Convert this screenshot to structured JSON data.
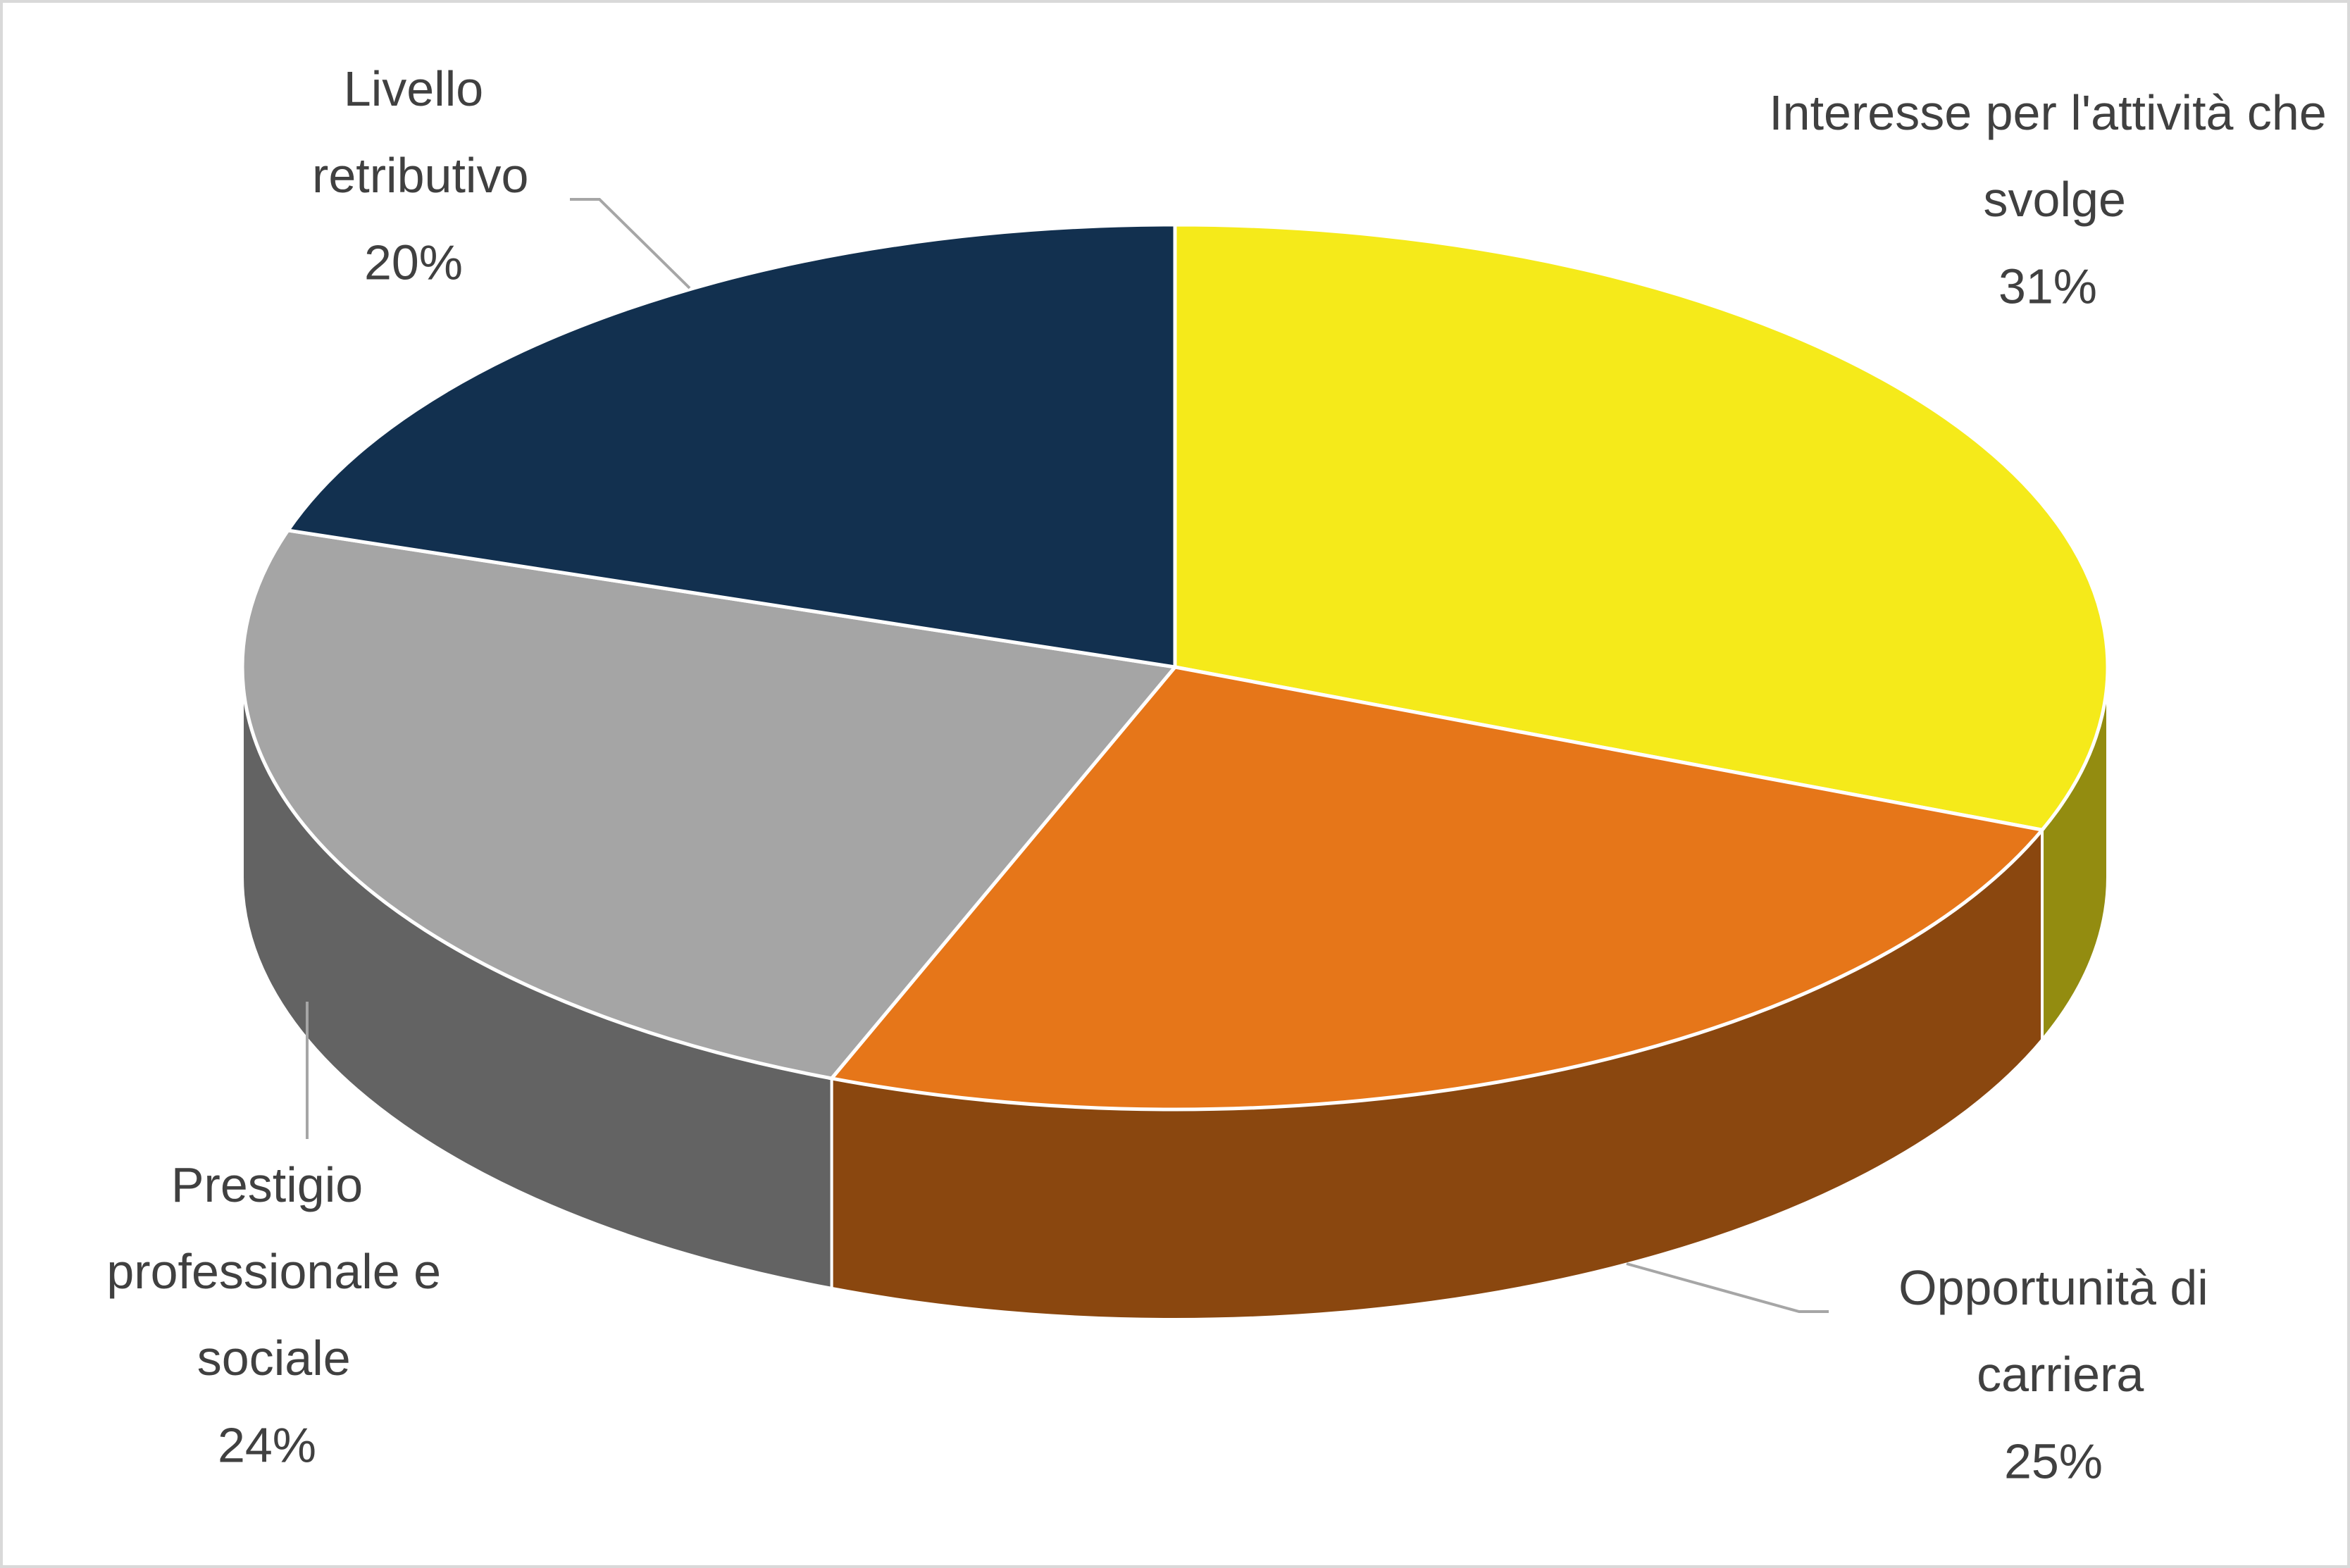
{
  "chart_data": {
    "type": "pie",
    "categories": [
      "Interesse per l'attività che svolge",
      "Opportunità di carriera",
      "Prestigio professionale e sociale",
      "Livello retributivo"
    ],
    "values": [
      31,
      25,
      24,
      20
    ],
    "value_labels": [
      "31%",
      "25%",
      "24%",
      "20%"
    ],
    "colors": [
      "#F5EA1A",
      "#E67619",
      "#A5A5A5",
      "#12304F"
    ]
  }
}
